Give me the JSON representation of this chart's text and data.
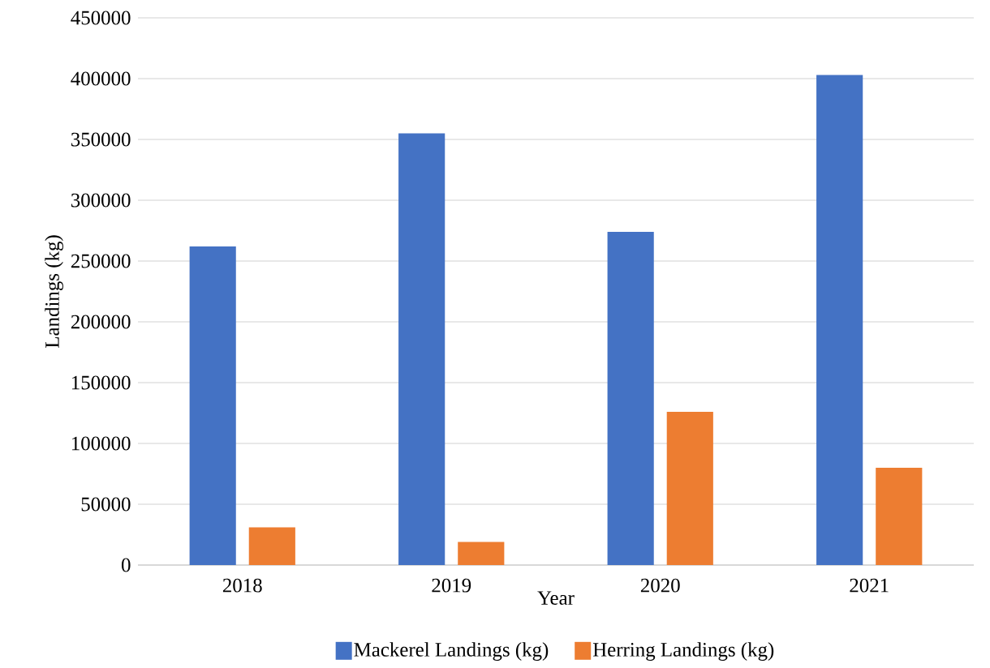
{
  "chart_data": {
    "type": "bar",
    "xlabel": "Year",
    "ylabel": "Landings (kg)",
    "categories": [
      "2018",
      "2019",
      "2020",
      "2021"
    ],
    "series": [
      {
        "name": "Mackerel Landings (kg)",
        "color": "#4472c4",
        "values": [
          262000,
          355000,
          274000,
          403000
        ]
      },
      {
        "name": "Herring Landings (kg)",
        "color": "#ed7d31",
        "values": [
          31000,
          19000,
          126000,
          80000
        ]
      }
    ],
    "ylim": [
      0,
      450000
    ],
    "yticks": [
      0,
      50000,
      100000,
      150000,
      200000,
      250000,
      300000,
      350000,
      400000,
      450000
    ],
    "grid": "y",
    "legend": "bottom"
  }
}
